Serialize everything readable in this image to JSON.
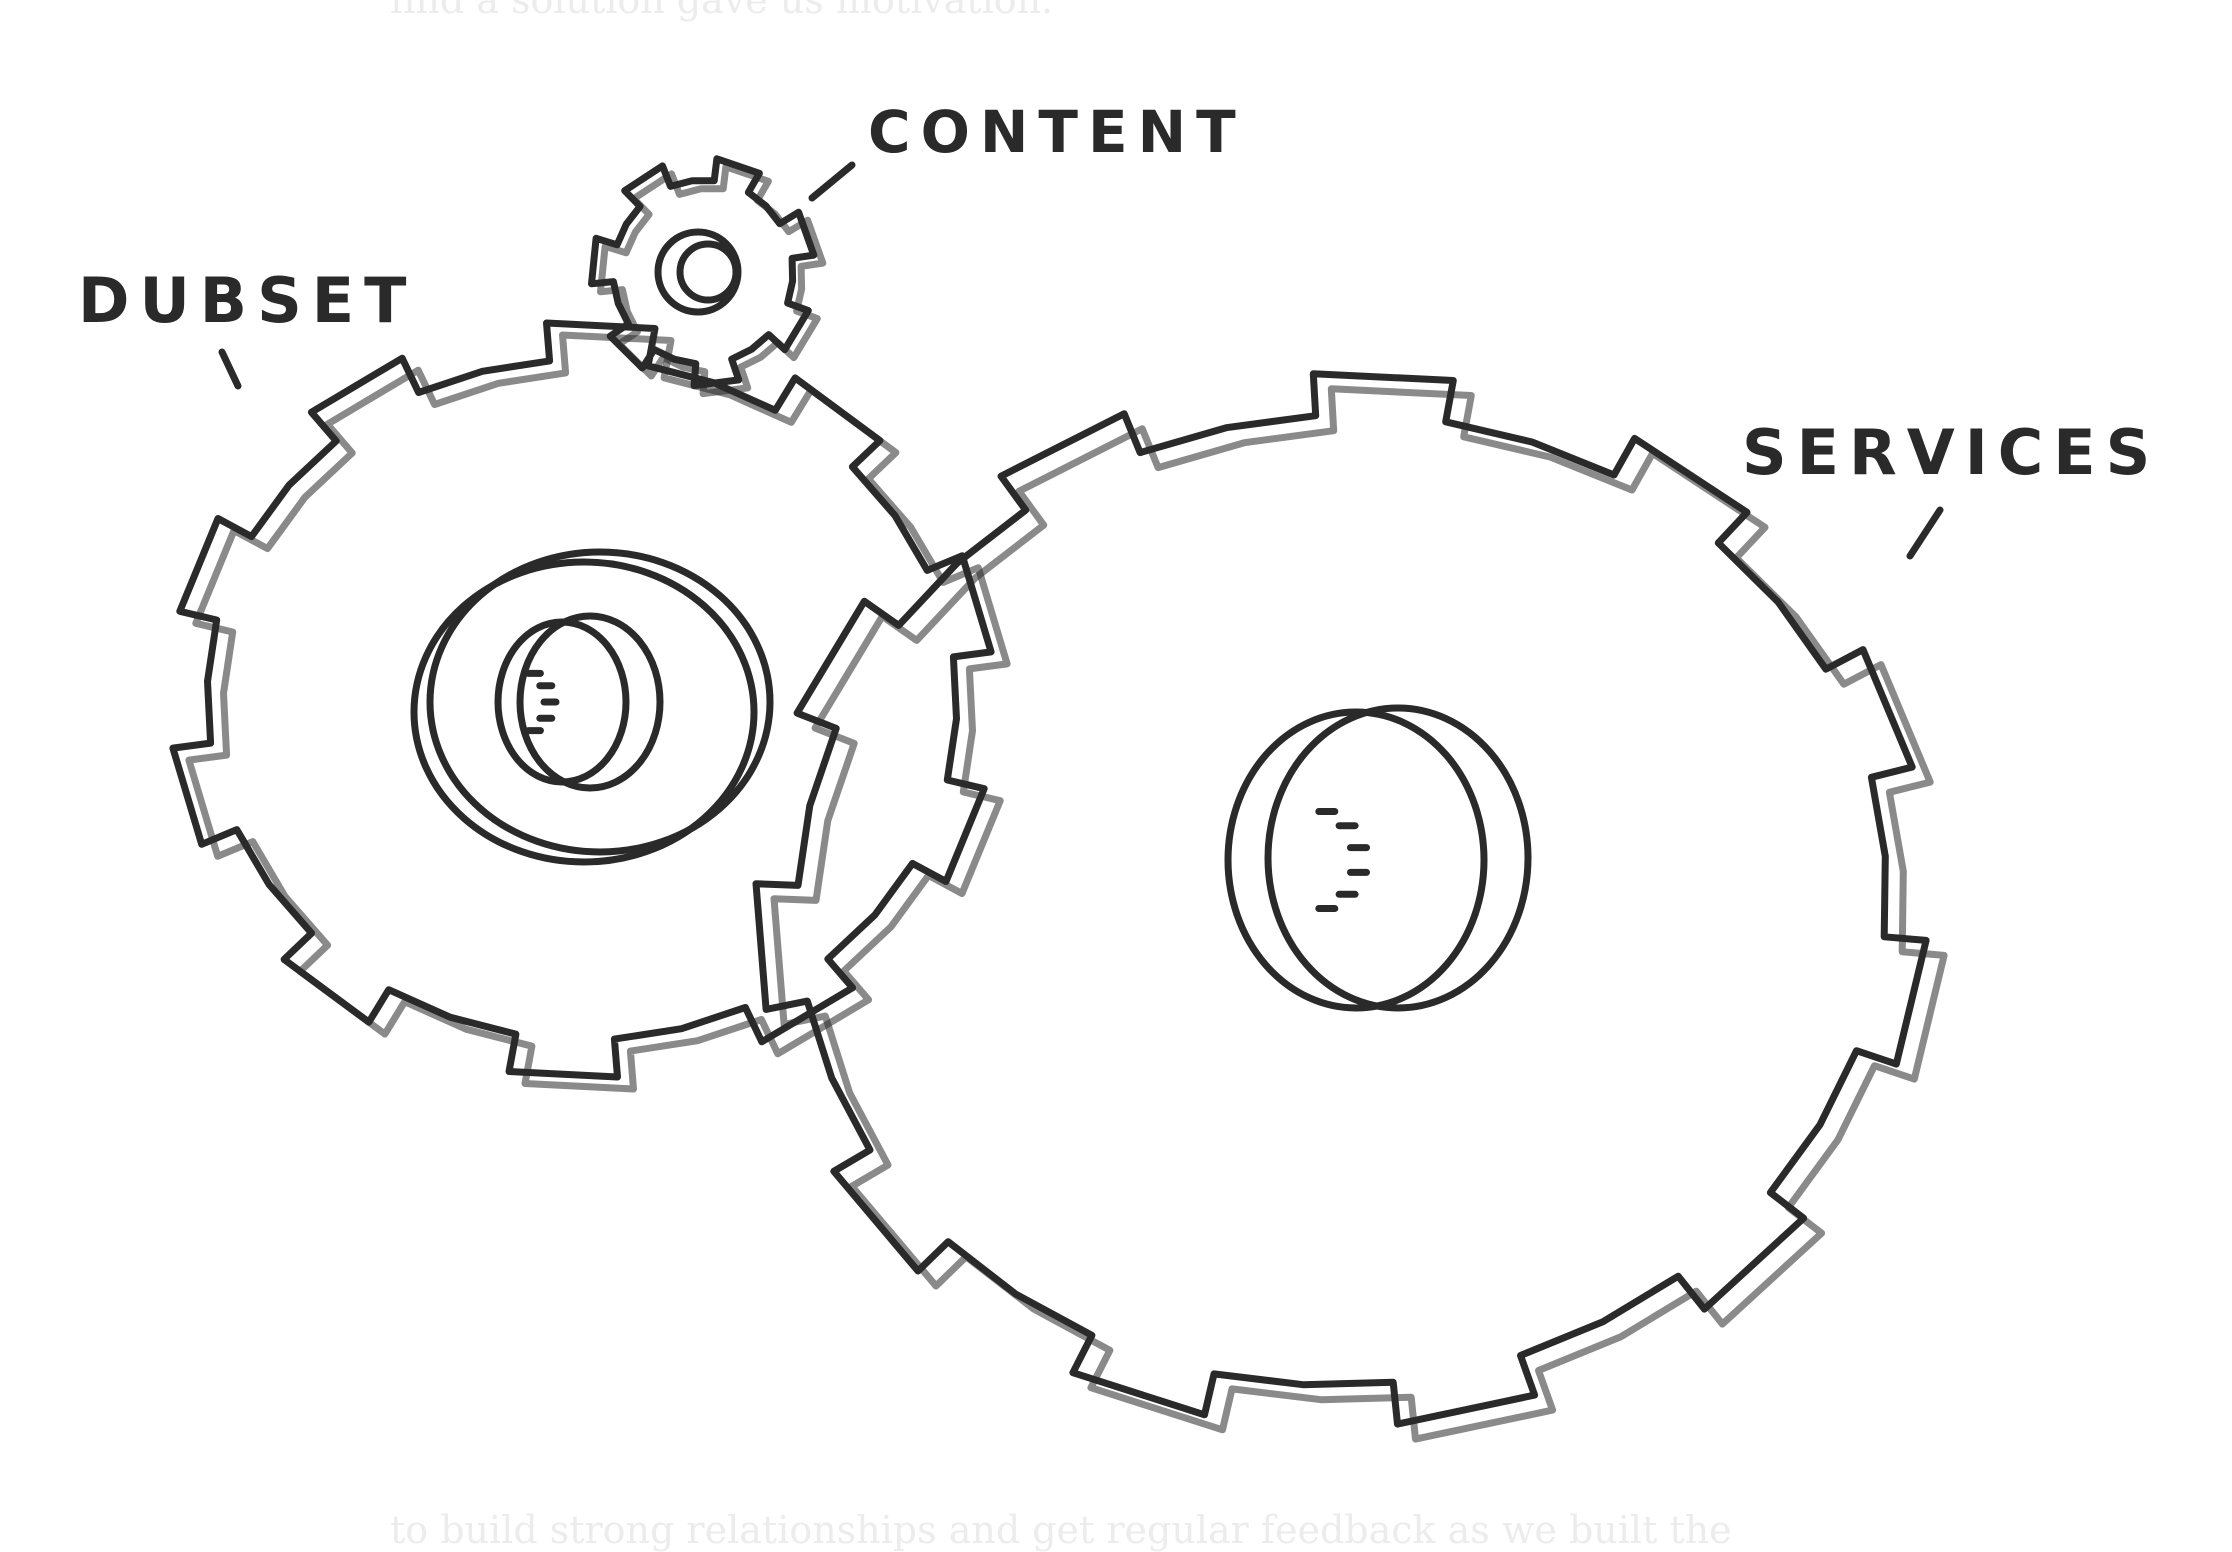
{
  "body_text": {
    "top": "find a solution gave us motivation.",
    "bottom": "to build strong relationships and get regular feedback as we built the"
  },
  "diagram": {
    "labels": {
      "content": "CONTENT",
      "dubset": "DUBSET",
      "services": "SERVICES"
    },
    "colors": {
      "ink": "#2a2a2a",
      "background": "#ffffff",
      "faded_text": "#ececec"
    }
  }
}
